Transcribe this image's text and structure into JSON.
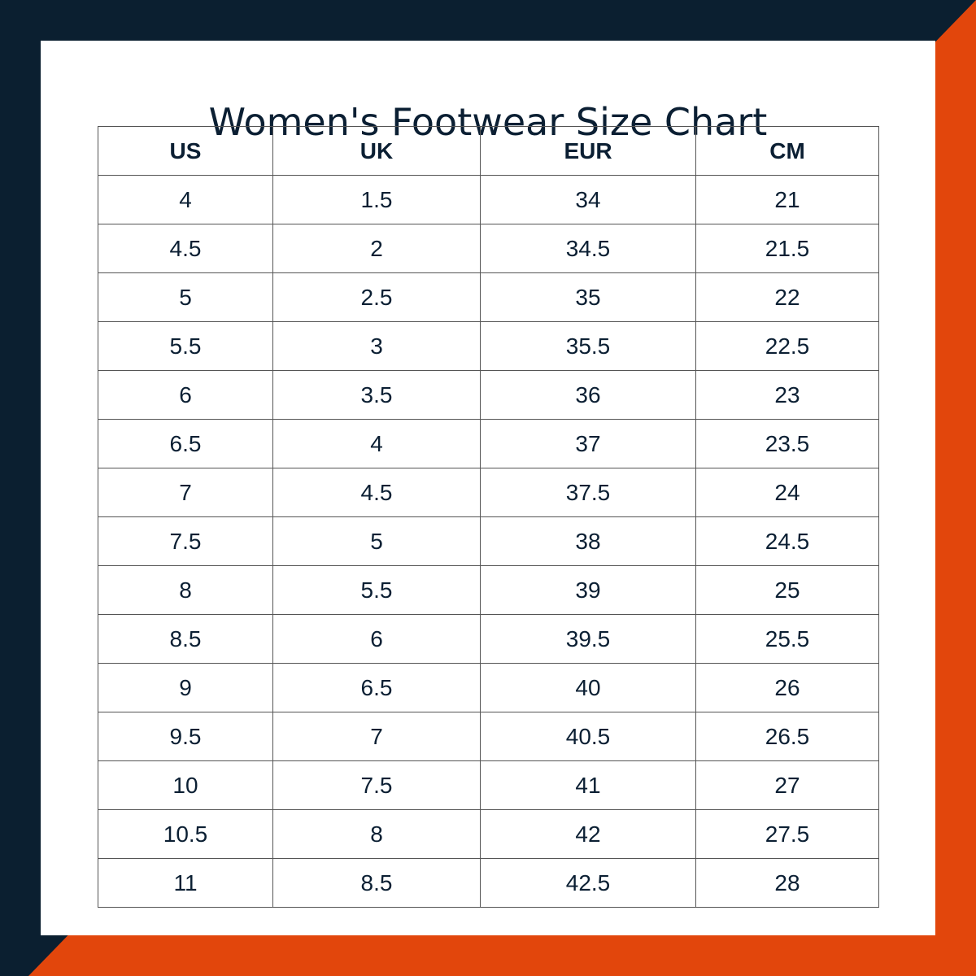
{
  "header": {
    "title": "Women's Footwear Size Chart"
  },
  "table": {
    "columns": [
      "US",
      "UK",
      "EUR",
      "CM"
    ],
    "rows": [
      [
        4,
        1.5,
        34,
        21
      ],
      [
        4.5,
        2,
        34.5,
        21.5
      ],
      [
        5,
        2.5,
        35,
        22
      ],
      [
        5.5,
        3,
        35.5,
        22.5
      ],
      [
        6,
        3.5,
        36,
        23
      ],
      [
        6.5,
        4,
        37,
        23.5
      ],
      [
        7,
        4.5,
        37.5,
        24
      ],
      [
        7.5,
        5,
        38,
        24.5
      ],
      [
        8,
        5.5,
        39,
        25
      ],
      [
        8.5,
        6,
        39.5,
        25.5
      ],
      [
        9,
        6.5,
        40,
        26
      ],
      [
        9.5,
        7,
        40.5,
        26.5
      ],
      [
        10,
        7.5,
        41,
        27
      ],
      [
        10.5,
        8,
        42,
        27.5
      ],
      [
        11,
        8.5,
        42.5,
        28
      ]
    ]
  }
}
